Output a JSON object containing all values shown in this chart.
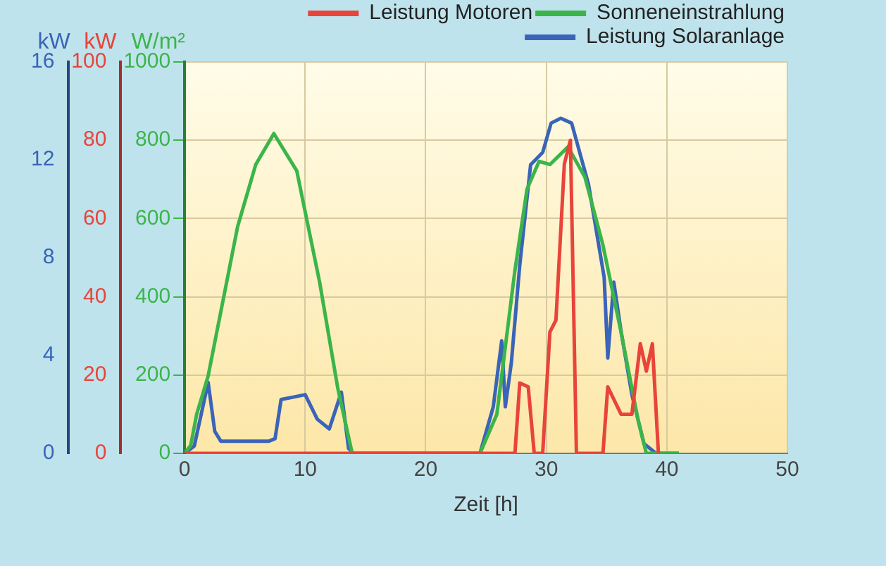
{
  "chart_data": {
    "type": "line",
    "xlabel": "Zeit [h]",
    "ylabel": "kW",
    "y2label": "kW",
    "y3label": "W/m²",
    "xlim": [
      0,
      50
    ],
    "xticks": [
      0,
      10,
      20,
      30,
      40,
      50
    ],
    "ylim": [
      0,
      16
    ],
    "yticks": [
      0,
      4,
      8,
      12,
      16
    ],
    "y2lim": [
      0,
      100
    ],
    "y2ticks": [
      0,
      20,
      40,
      60,
      80,
      100
    ],
    "y3lim": [
      0,
      1000
    ],
    "y3ticks": [
      0,
      200,
      400,
      600,
      800,
      1000
    ],
    "grid": true,
    "legend": "top right",
    "marker": "none",
    "line_style": "solid",
    "series": [
      {
        "name": "Leistung Motoren",
        "color": "#e8443a",
        "axis": "y2",
        "x": [
          0,
          13.5,
          24.8,
          27.4,
          27.8,
          28.5,
          29,
          29.7,
          30.3,
          30.8,
          31.5,
          32,
          32.5,
          34.7,
          35.1,
          36.2,
          37.1,
          37.8,
          38.3,
          38.8,
          39.3
        ],
        "values": [
          0,
          0,
          0,
          0,
          18,
          17,
          0,
          0,
          31,
          34,
          74,
          80,
          0,
          0,
          17,
          10,
          10,
          28,
          21,
          28,
          0
        ]
      },
      {
        "name": "Sonneneinstrahlung",
        "color": "#3bb54a",
        "axis": "y3",
        "x": [
          0,
          0.5,
          1,
          1.95,
          4.4,
          5.9,
          7.4,
          9.3,
          11.2,
          12.7,
          13.9,
          24.5,
          25.9,
          27.4,
          28.4,
          29.4,
          30.3,
          31.8,
          33.2,
          34.7,
          36.2,
          37.6,
          38.3,
          41
        ],
        "values": [
          0,
          20,
          100,
          198,
          580,
          738,
          817,
          722,
          437,
          167,
          0,
          0,
          100,
          468,
          675,
          746,
          738,
          783,
          706,
          532,
          310,
          87,
          0,
          0
        ]
      },
      {
        "name": "Leistung Solaranlage",
        "color": "#3a64b8",
        "axis": "y",
        "x": [
          0,
          0.8,
          1.95,
          2.5,
          3,
          5,
          7,
          7.5,
          8,
          9,
          10,
          11,
          12,
          13,
          13.6,
          14,
          24.5,
          25.6,
          26.3,
          26.6,
          27.1,
          27.8,
          28.7,
          29.7,
          30.4,
          31.2,
          32.1,
          33.5,
          34.8,
          35.1,
          35.6,
          36.2,
          37.1,
          38.1,
          39.1,
          41
        ],
        "values": [
          0,
          0.3,
          2.9,
          0.9,
          0.5,
          0.5,
          0.5,
          0.6,
          2.2,
          2.3,
          2.4,
          1.4,
          1,
          2.5,
          0.2,
          0,
          0,
          1.9,
          4.6,
          1.9,
          3.7,
          7.7,
          11.8,
          12.3,
          13.5,
          13.7,
          13.5,
          11,
          7.2,
          3.9,
          7,
          5,
          2.4,
          0.4,
          0,
          0
        ]
      }
    ]
  }
}
